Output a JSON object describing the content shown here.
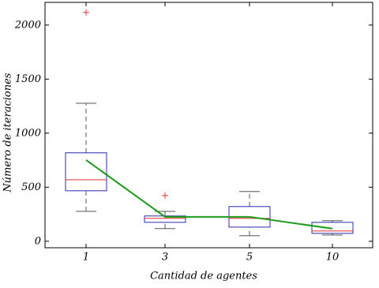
{
  "chart_data": {
    "type": "box",
    "x_label": "Cantidad de agentes",
    "y_label": "Número de iteraciones",
    "categories": [
      "1",
      "3",
      "5",
      "10"
    ],
    "boxes": [
      {
        "min": 277,
        "q1": 467,
        "median": 569,
        "q3": 818,
        "max": 1277,
        "outliers": [
          2117
        ]
      },
      {
        "min": 117,
        "q1": 175,
        "median": 212,
        "q3": 234,
        "max": 277,
        "outliers": [
          423
        ]
      },
      {
        "min": 51,
        "q1": 131,
        "median": 212,
        "q3": 321,
        "max": 460,
        "outliers": []
      },
      {
        "min": 58,
        "q1": 73,
        "median": 95,
        "q3": 175,
        "max": 190,
        "outliers": []
      }
    ],
    "box_color": "#2b2bb0",
    "median_color": "#e03030",
    "whisker_color": "#555555",
    "outlier_color": "#e03030",
    "line": {
      "color": "#1a9a1a",
      "values": [
        752,
        226,
        226,
        117
      ]
    },
    "ylim": [
      -60,
      2210
    ],
    "yticks": [
      0,
      500,
      1000,
      1500,
      2000
    ]
  }
}
